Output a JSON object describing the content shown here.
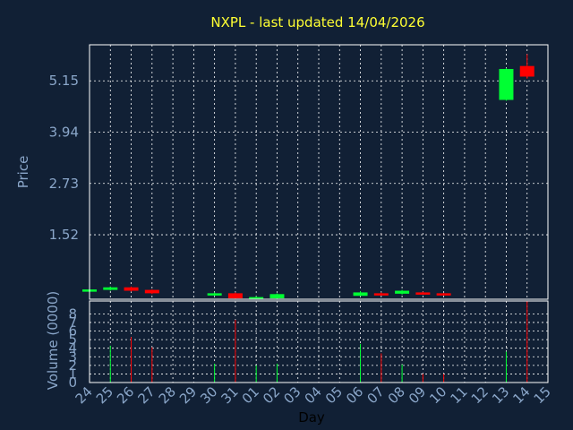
{
  "chart_data": {
    "type": "candlestick",
    "title": "NXPL - last updated 14/04/2026",
    "price_panel": {
      "ylabel": "Price",
      "ylim": [
        0.0,
        6.0
      ],
      "yticks": [
        1.52,
        2.73,
        3.94,
        5.15
      ],
      "grid": true
    },
    "volume_panel": {
      "ylabel": "Volume (0000)",
      "ylim": [
        0,
        9.5
      ],
      "yticks": [
        0,
        1,
        2,
        3,
        4,
        5,
        6,
        7,
        8
      ],
      "grid": true
    },
    "xlabel": "Day",
    "x_ticks": [
      "24",
      "25",
      "26",
      "27",
      "28",
      "29",
      "30",
      "31",
      "01",
      "02",
      "03",
      "04",
      "05",
      "06",
      "07",
      "08",
      "09",
      "10",
      "11",
      "12",
      "13",
      "14",
      "15"
    ],
    "candles": [
      {
        "day": "24",
        "open": 0.2,
        "close": 0.23,
        "high": 0.25,
        "low": 0.2,
        "volume": 0
      },
      {
        "day": "25",
        "open": 0.22,
        "close": 0.28,
        "high": 0.3,
        "low": 0.2,
        "volume": 4.3
      },
      {
        "day": "26",
        "open": 0.28,
        "close": 0.2,
        "high": 0.3,
        "low": 0.18,
        "volume": 5.3
      },
      {
        "day": "27",
        "open": 0.22,
        "close": 0.14,
        "high": 0.23,
        "low": 0.12,
        "volume": 4.1
      },
      {
        "day": "30",
        "open": 0.1,
        "close": 0.14,
        "high": 0.16,
        "low": 0.08,
        "volume": 2.2
      },
      {
        "day": "31",
        "open": 0.14,
        "close": 0.02,
        "high": 0.16,
        "low": 0.01,
        "volume": 7.3
      },
      {
        "day": "01",
        "open": 0.02,
        "close": 0.05,
        "high": 0.07,
        "low": 0.0,
        "volume": 2.0
      },
      {
        "day": "02",
        "open": 0.02,
        "close": 0.12,
        "high": 0.14,
        "low": 0.01,
        "volume": 2.2
      },
      {
        "day": "06",
        "open": 0.08,
        "close": 0.16,
        "high": 0.19,
        "low": 0.07,
        "volume": 4.5
      },
      {
        "day": "07",
        "open": 0.14,
        "close": 0.11,
        "high": 0.16,
        "low": 0.09,
        "volume": 3.4
      },
      {
        "day": "08",
        "open": 0.13,
        "close": 0.2,
        "high": 0.22,
        "low": 0.11,
        "volume": 2.1
      },
      {
        "day": "09",
        "open": 0.16,
        "close": 0.14,
        "high": 0.18,
        "low": 0.12,
        "volume": 1.0
      },
      {
        "day": "10",
        "open": 0.14,
        "close": 0.12,
        "high": 0.15,
        "low": 0.11,
        "volume": 1.0
      },
      {
        "day": "13",
        "open": 4.7,
        "close": 5.43,
        "high": 5.45,
        "low": 4.68,
        "volume": 3.6
      },
      {
        "day": "14",
        "open": 5.5,
        "close": 5.25,
        "high": 5.78,
        "low": 5.2,
        "volume": 9.5
      }
    ],
    "colors": {
      "up": "#00ff33",
      "down": "#ff0000",
      "background": "#112035",
      "title": "#ffff33",
      "axis_text": "#8aa6c9",
      "grid": "#ffffff"
    }
  }
}
